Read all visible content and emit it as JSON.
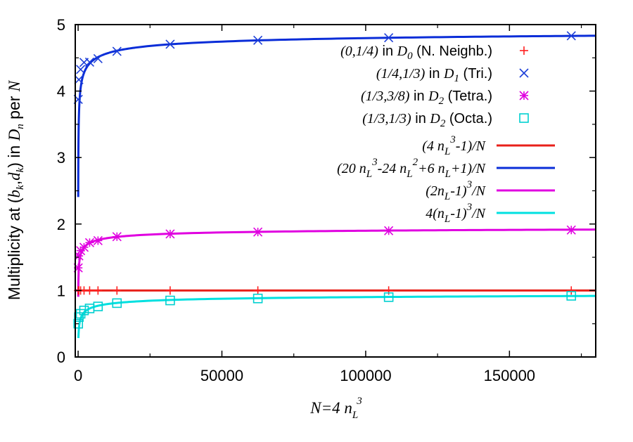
{
  "chart_data": {
    "type": "line",
    "xlabel": "N=4 n_L^3",
    "ylabel": "Multiplicity at (b_k,d_k) in D_n per N",
    "xlim": [
      -1000,
      180000
    ],
    "ylim": [
      0,
      5
    ],
    "xticks": [
      0,
      50000,
      100000,
      150000
    ],
    "xtick_labels": [
      "0",
      "50000",
      "100000",
      "150000"
    ],
    "yticks": [
      0,
      1,
      2,
      3,
      4,
      5
    ],
    "ytick_labels": [
      "0",
      "1",
      "2",
      "3",
      "4",
      "5"
    ],
    "grid": false,
    "legend_position": "top-right",
    "points_x": [
      32,
      256,
      864,
      2048,
      4000,
      6912,
      13500,
      32000,
      62500,
      108000,
      171500
    ],
    "markers": [
      {
        "legend_id": "m0",
        "marker": "plus",
        "color": "#ff2020",
        "y": [
          1,
          1,
          1,
          1,
          1,
          1,
          1,
          1,
          1,
          1,
          1
        ]
      },
      {
        "legend_id": "m1",
        "marker": "cross",
        "color": "#1d3fd8",
        "y": [
          3.875,
          4.172,
          4.325,
          4.431,
          4.435,
          4.488,
          4.598,
          4.705,
          4.764,
          4.803,
          4.831
        ]
      },
      {
        "legend_id": "m2",
        "marker": "asterisk",
        "color": "#e000e0",
        "y": [
          1.34,
          1.52,
          1.6,
          1.65,
          1.72,
          1.75,
          1.81,
          1.85,
          1.88,
          1.9,
          1.91
        ]
      },
      {
        "legend_id": "m3",
        "marker": "square",
        "color": "#00d0d0",
        "y": [
          0.5,
          0.6,
          0.65,
          0.7,
          0.73,
          0.76,
          0.81,
          0.85,
          0.88,
          0.9,
          0.92
        ]
      }
    ],
    "curves": [
      {
        "legend_id": "c0",
        "formula": "const",
        "color": "#e8201a"
      },
      {
        "legend_id": "c1",
        "formula": "tri",
        "color": "#0a2dd8"
      },
      {
        "legend_id": "c2",
        "formula": "tetra",
        "color": "#e000e0"
      },
      {
        "legend_id": "c3",
        "formula": "octa",
        "color": "#00e0e0"
      }
    ],
    "legend": {
      "m0": {
        "p1": "(0,1/4)",
        "mid": " in ",
        "d": "D",
        "dsub": "0",
        "tail": " (N. Neighb.)"
      },
      "m1": {
        "p1": "(1/4,1/3)",
        "mid": " in ",
        "d": "D",
        "dsub": "1",
        "tail": " (Tri.)"
      },
      "m2": {
        "p1": "(1/3,3/8)",
        "mid": " in ",
        "d": "D",
        "dsub": "2",
        "tail": " (Tetra.)"
      },
      "m3": {
        "p1": "(1/3,1/3)",
        "mid": " in ",
        "d": "D",
        "dsub": "2",
        "tail": " (Octa.)"
      },
      "c0": {
        "a": "(4 n",
        "sub1": "L",
        "sup1": "3",
        "b": "-1)/N"
      },
      "c1": {
        "a": "(20 n",
        "sub1": "L",
        "sup1": "3",
        "b": "-24 n",
        "sub2": "L",
        "sup2": "2",
        "c": "+6 n",
        "sub3": "L",
        "d": "+1)/N"
      },
      "c2": {
        "a": "(2n",
        "sub1": "L",
        "b": "-1)",
        "sup1": "3",
        "c": "/N"
      },
      "c3": {
        "a": "4(n",
        "sub1": "L",
        "b": "-1)",
        "sup1": "3",
        "c": "/N"
      }
    }
  }
}
